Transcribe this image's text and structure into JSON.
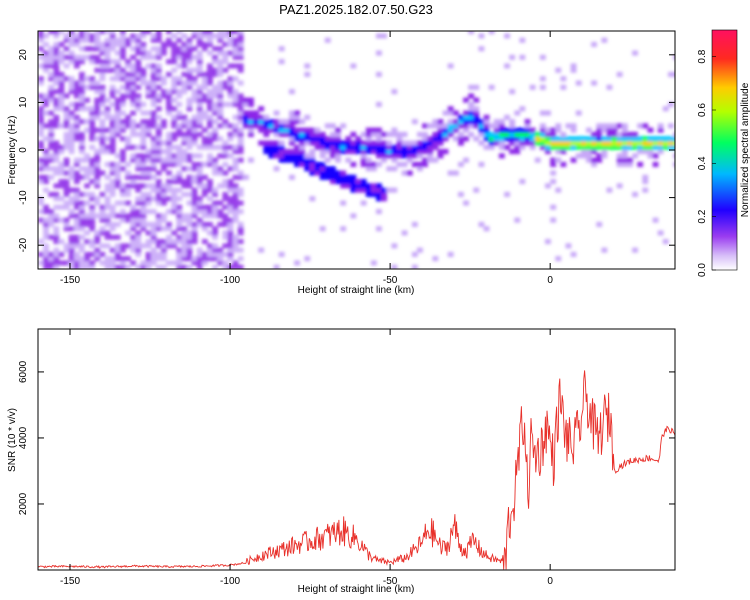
{
  "title": "PAZ1.2025.182.07.50.G23",
  "chart_data": [
    {
      "type": "heatmap",
      "xlabel": "Height of straight line (km)",
      "ylabel": "Frequency (Hz)",
      "xlim": [
        -160,
        39
      ],
      "ylim": [
        -25,
        25
      ],
      "xticks": [
        -150,
        -100,
        -50,
        0
      ],
      "yticks": [
        -20,
        -10,
        0,
        10,
        20
      ],
      "colorbar": {
        "label": "Normalized spectral amplitude",
        "range": [
          0.0,
          0.9
        ],
        "ticks": [
          0.0,
          0.2,
          0.4,
          0.6,
          0.8
        ],
        "colormap": [
          "#ffffff",
          "#c8a8f8",
          "#8c28e8",
          "#1400ff",
          "#00c8ff",
          "#00ff50",
          "#b4ff00",
          "#ffcc00",
          "#ff2020",
          "#ff1060"
        ]
      },
      "dominant_ridge": {
        "height_km": [
          -95,
          -85,
          -75,
          -65,
          -55,
          -45,
          -38,
          -30,
          -25,
          -20,
          -15,
          -10,
          -5,
          0,
          10,
          20,
          30,
          39
        ],
        "frequency_hz": [
          6,
          4,
          2,
          0,
          0,
          -1,
          1,
          5,
          7,
          2,
          3,
          3,
          2,
          1,
          1,
          1,
          1,
          1
        ]
      },
      "secondary_branch": {
        "height_km": [
          -90,
          -80,
          -75,
          -68,
          -60,
          -52
        ],
        "frequency_hz": [
          0,
          -2,
          -4,
          -6,
          -8,
          -10
        ]
      },
      "noise_region_km": [
        -160,
        -97
      ]
    },
    {
      "type": "line",
      "xlabel": "Height of straight line (km)",
      "ylabel": "SNR (10 * v/v)",
      "xlim": [
        -160,
        39
      ],
      "ylim": [
        0,
        7300
      ],
      "xticks": [
        -150,
        -100,
        -50,
        0
      ],
      "yticks": [
        2000,
        4000,
        6000
      ],
      "color": "#e8302a",
      "x": [
        -160,
        -150,
        -140,
        -130,
        -120,
        -110,
        -100,
        -95,
        -90,
        -85,
        -80,
        -75,
        -70,
        -65,
        -60,
        -57,
        -54,
        -50,
        -47,
        -45,
        -42,
        -40,
        -38,
        -36,
        -34,
        -32,
        -30,
        -28,
        -26,
        -24,
        -22,
        -20,
        -18,
        -16,
        -14,
        -13,
        -11,
        -10,
        -9,
        -8,
        -7,
        -6,
        -5,
        -3,
        -1,
        1,
        3,
        5,
        7,
        9,
        11,
        13,
        15,
        17,
        19,
        20,
        22,
        25,
        28,
        31,
        34,
        35,
        37,
        39
      ],
      "y": [
        100,
        110,
        90,
        120,
        100,
        110,
        150,
        220,
        400,
        520,
        650,
        780,
        900,
        1050,
        800,
        420,
        250,
        200,
        280,
        330,
        560,
        730,
        1100,
        900,
        560,
        640,
        1200,
        600,
        500,
        800,
        550,
        380,
        300,
        250,
        200,
        1400,
        2300,
        3300,
        4200,
        4600,
        2100,
        4000,
        3500,
        3600,
        4400,
        3300,
        5200,
        4000,
        3700,
        4200,
        5400,
        4500,
        3900,
        4600,
        4600,
        3000,
        3150,
        3300,
        3350,
        3400,
        3300,
        4100,
        4300,
        4100
      ]
    }
  ]
}
